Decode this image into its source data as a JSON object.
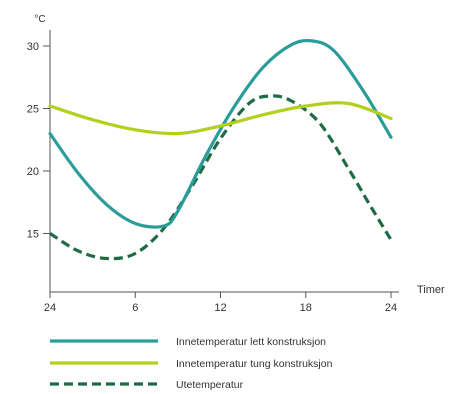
{
  "chart_data": {
    "type": "line",
    "title": "",
    "ylabel": "°C",
    "xlabel": "Timer",
    "ylim": [
      10,
      32
    ],
    "xlim": [
      0,
      24
    ],
    "x_ticks": [
      {
        "value": 0,
        "label": "24"
      },
      {
        "value": 6,
        "label": "6"
      },
      {
        "value": 12,
        "label": "12"
      },
      {
        "value": 18,
        "label": "18"
      },
      {
        "value": 24,
        "label": "24"
      }
    ],
    "y_ticks": [
      15,
      20,
      25,
      30
    ],
    "grid": false,
    "legend_position": "bottom",
    "series": [
      {
        "name": "Innetemperatur lett konstruksjon",
        "color": "#2a9d9a",
        "dash": "solid",
        "x": [
          0,
          2,
          4,
          6,
          8,
          9,
          11,
          13,
          15,
          17,
          18.5,
          20,
          22,
          24
        ],
        "y": [
          23,
          19.8,
          17.3,
          15.8,
          15.6,
          16.8,
          21.3,
          25.2,
          28.3,
          30.1,
          30.4,
          29.6,
          26.5,
          22.7
        ]
      },
      {
        "name": "Innetemperatur tung konstruksjon",
        "color": "#b4cf1e",
        "dash": "solid",
        "x": [
          0,
          3,
          6,
          9,
          12,
          15,
          18,
          21,
          24
        ],
        "y": [
          25.2,
          24.1,
          23.3,
          23.0,
          23.6,
          24.5,
          25.2,
          25.4,
          24.2
        ]
      },
      {
        "name": "Utetemperatur",
        "color": "#1e6b45",
        "dash": "dashed",
        "x": [
          0,
          2,
          4,
          6,
          8,
          10,
          12,
          14,
          15.5,
          17,
          19,
          21,
          22.5,
          24
        ],
        "y": [
          15.0,
          13.6,
          13.0,
          13.4,
          15.4,
          18.8,
          22.6,
          25.4,
          26.0,
          25.6,
          23.8,
          20.2,
          17.3,
          14.5
        ]
      }
    ]
  }
}
